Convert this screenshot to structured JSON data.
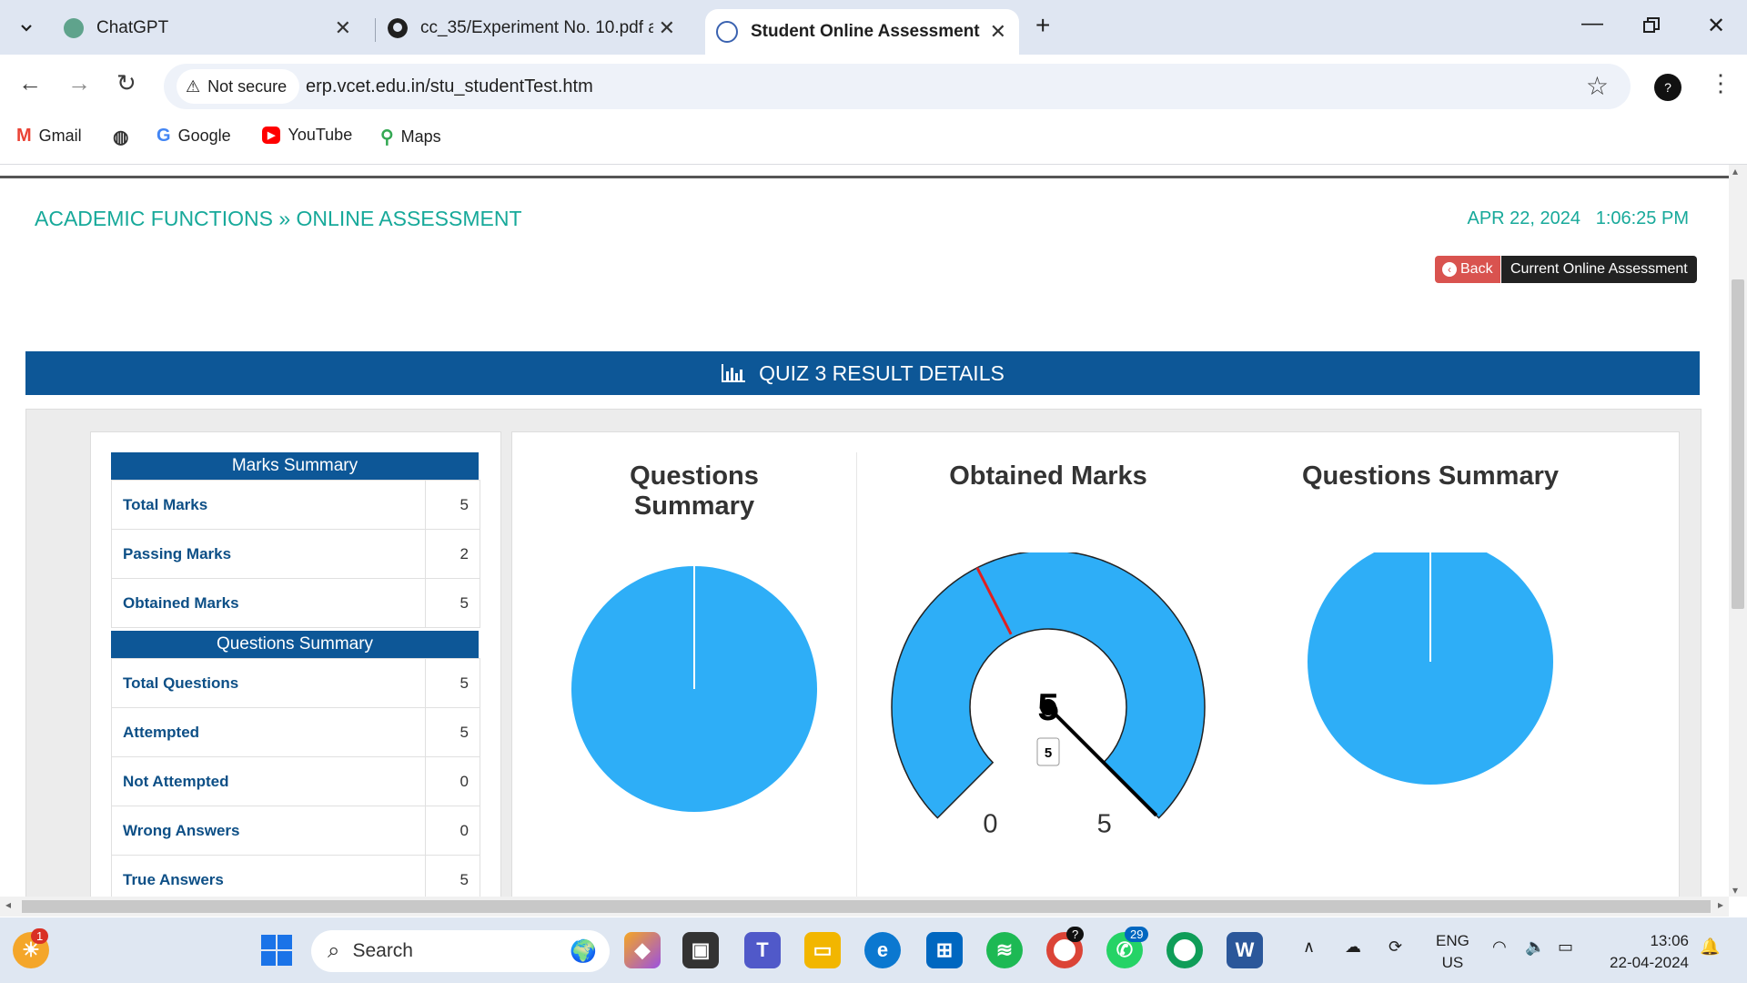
{
  "browser": {
    "tabs": [
      {
        "title": "ChatGPT",
        "icon": "chatgpt-icon"
      },
      {
        "title": "cc_35/Experiment No. 10.pdf a",
        "icon": "github-icon"
      },
      {
        "title": "Student Online Assessment",
        "icon": "college-icon",
        "active": true
      }
    ],
    "new_tab": "+",
    "security_label": "Not secure",
    "url": "erp.vcet.edu.in/stu_studentTest.htm",
    "profile_initial": "?",
    "bookmarks": [
      "Gmail",
      "Google",
      "YouTube",
      "Maps"
    ]
  },
  "page": {
    "breadcrumb_1": "ACADEMIC FUNCTIONS",
    "breadcrumb_sep": "»",
    "breadcrumb_2": "ONLINE ASSESSMENT",
    "date": "APR 22, 2024",
    "time": "1:06:25 PM",
    "back_label": "Back",
    "current_label": "Current Online Assessment",
    "quiz_title": "QUIZ 3 RESULT DETAILS",
    "marks_summary": {
      "header": "Marks Summary",
      "rows": [
        {
          "label": "Total Marks",
          "value": "5"
        },
        {
          "label": "Passing Marks",
          "value": "2"
        },
        {
          "label": "Obtained Marks",
          "value": "5"
        }
      ]
    },
    "questions_summary": {
      "header": "Questions Summary",
      "rows": [
        {
          "label": "Total Questions",
          "value": "5"
        },
        {
          "label": "Attempted",
          "value": "5"
        },
        {
          "label": "Not Attempted",
          "value": "0"
        },
        {
          "label": "Wrong Answers",
          "value": "0"
        },
        {
          "label": "True Answers",
          "value": "5"
        }
      ]
    },
    "charts": {
      "left_title_line1": "Questions",
      "left_title_line2": "Summary",
      "middle_title": "Obtained Marks",
      "right_title": "Questions Summary"
    }
  },
  "chart_data": [
    {
      "type": "pie",
      "title": "Questions Summary",
      "values": [
        5
      ],
      "color": "#2eaef7"
    },
    {
      "type": "gauge",
      "title": "Obtained Marks",
      "min": 0,
      "max": 5,
      "value": 5,
      "passing": 2,
      "value_label": "5",
      "tick_labels": [
        "0",
        "5"
      ],
      "color": "#2eaef7",
      "marker_color": "#e02020"
    },
    {
      "type": "pie",
      "title": "Questions Summary",
      "values": [
        5
      ],
      "color": "#2eaef7"
    }
  ],
  "taskbar": {
    "search_placeholder": "Search",
    "notification_badge": "1",
    "chrome_badge": "?",
    "whatsapp_badge": "29",
    "lang_line1": "ENG",
    "lang_line2": "US",
    "clock_time": "13:06",
    "clock_date": "22-04-2024"
  },
  "colors": {
    "accent_teal": "#17a99a",
    "header_blue": "#0d5797",
    "chart_blue": "#2eaef7",
    "back_red": "#d9534f"
  }
}
